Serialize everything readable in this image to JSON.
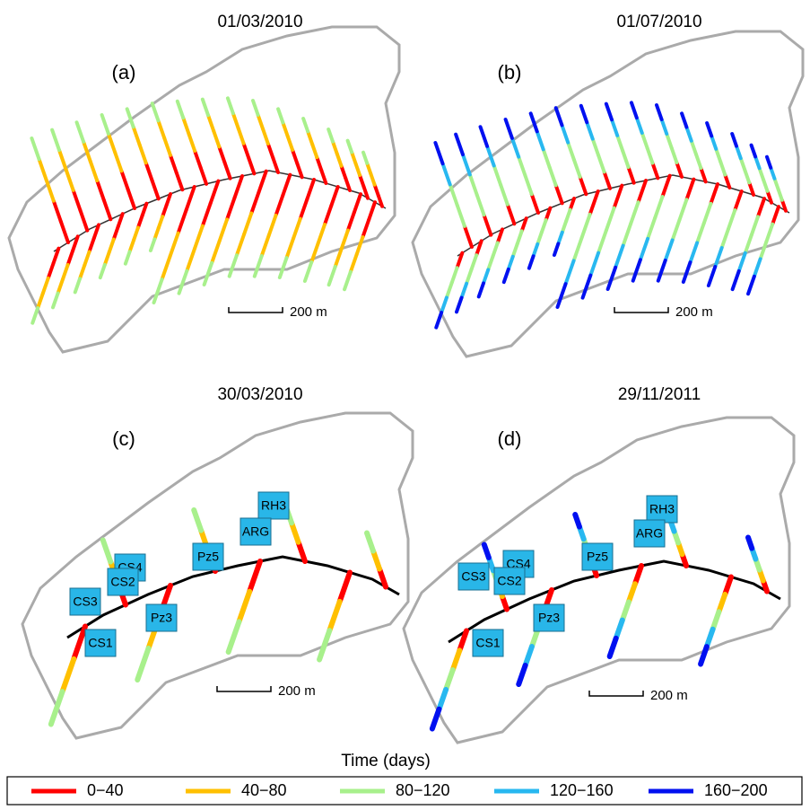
{
  "panels": [
    {
      "date": "01/03/2010",
      "label": "(a)",
      "scale": "200 m"
    },
    {
      "date": "01/07/2010",
      "label": "(b)",
      "scale": "200 m"
    },
    {
      "date": "30/03/2010",
      "label": "(c)",
      "scale": "200 m",
      "stations": [
        "CS3",
        "CS4",
        "CS2",
        "Pz5",
        "Pz3",
        "CS1",
        "RH3",
        "ARG"
      ]
    },
    {
      "date": "29/11/2011",
      "label": "(d)",
      "scale": "200 m",
      "stations": [
        "CS3",
        "CS4",
        "CS2",
        "Pz5",
        "Pz3",
        "CS1",
        "RH3",
        "ARG"
      ]
    }
  ],
  "legend": {
    "title": "Time (days)",
    "items": [
      {
        "label": "0−40",
        "color": "#ff0000"
      },
      {
        "label": "40−80",
        "color": "#ffc000"
      },
      {
        "label": "80−120",
        "color": "#a8f08c"
      },
      {
        "label": "120−160",
        "color": "#28b8f0"
      },
      {
        "label": "160−200",
        "color": "#0010f0"
      }
    ]
  }
}
